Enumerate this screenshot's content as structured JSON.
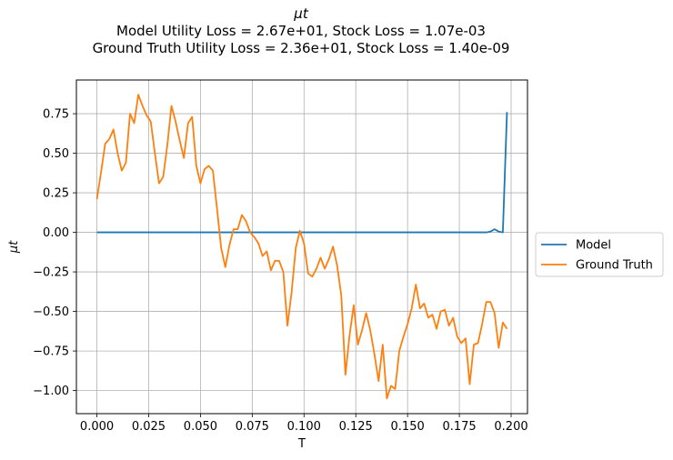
{
  "titles": {
    "line1": "μt",
    "line2": "Model Utility Loss = 2.67e+01, Stock Loss = 1.07e-03",
    "line3": "Ground Truth Utility Loss = 2.36e+01, Stock Loss = 1.40e-09"
  },
  "chart_data": {
    "type": "line",
    "xlabel": "T",
    "ylabel": "μt",
    "xlim": [
      -0.0099,
      0.2079
    ],
    "ylim": [
      -1.146,
      0.963
    ],
    "grid": true,
    "legend_placement": "right-outside",
    "x_ticks": [
      0.0,
      0.025,
      0.05,
      0.075,
      0.1,
      0.125,
      0.15,
      0.175,
      0.2
    ],
    "x_tick_labels": [
      "0.000",
      "0.025",
      "0.050",
      "0.075",
      "0.100",
      "0.125",
      "0.150",
      "0.175",
      "0.200"
    ],
    "y_ticks": [
      -1.0,
      -0.75,
      -0.5,
      -0.25,
      0.0,
      0.25,
      0.5,
      0.75
    ],
    "y_tick_labels": [
      "−1.00",
      "−0.75",
      "−0.50",
      "−0.25",
      "0.00",
      "0.25",
      "0.50",
      "0.75"
    ],
    "series": [
      {
        "name": "Model",
        "color": "#1f77b4",
        "x": [
          0.0,
          0.02,
          0.04,
          0.06,
          0.08,
          0.1,
          0.12,
          0.14,
          0.16,
          0.18,
          0.188,
          0.19,
          0.192,
          0.194,
          0.196,
          0.198
        ],
        "y": [
          0.0,
          0.0,
          0.0,
          0.0,
          0.0,
          0.0,
          0.0,
          0.0,
          0.0,
          0.0,
          0.0,
          0.005,
          0.02,
          0.005,
          0.0,
          0.76
        ]
      },
      {
        "name": "Ground Truth",
        "color": "#ff7f0e",
        "x": [
          0.0,
          0.002,
          0.004,
          0.006,
          0.008,
          0.01,
          0.012,
          0.014,
          0.016,
          0.018,
          0.02,
          0.022,
          0.024,
          0.026,
          0.028,
          0.03,
          0.032,
          0.034,
          0.036,
          0.038,
          0.04,
          0.042,
          0.044,
          0.046,
          0.048,
          0.05,
          0.052,
          0.054,
          0.056,
          0.058,
          0.06,
          0.062,
          0.064,
          0.066,
          0.068,
          0.07,
          0.072,
          0.074,
          0.076,
          0.078,
          0.08,
          0.082,
          0.084,
          0.086,
          0.088,
          0.09,
          0.092,
          0.094,
          0.096,
          0.098,
          0.1,
          0.102,
          0.104,
          0.106,
          0.108,
          0.11,
          0.112,
          0.114,
          0.116,
          0.118,
          0.12,
          0.122,
          0.124,
          0.126,
          0.128,
          0.13,
          0.132,
          0.134,
          0.136,
          0.138,
          0.14,
          0.142,
          0.144,
          0.146,
          0.148,
          0.15,
          0.152,
          0.154,
          0.156,
          0.158,
          0.16,
          0.162,
          0.164,
          0.166,
          0.168,
          0.17,
          0.172,
          0.174,
          0.176,
          0.178,
          0.18,
          0.182,
          0.184,
          0.186,
          0.188,
          0.19,
          0.192,
          0.194,
          0.196,
          0.198
        ],
        "y": [
          0.21,
          0.38,
          0.56,
          0.59,
          0.65,
          0.5,
          0.39,
          0.44,
          0.75,
          0.69,
          0.87,
          0.8,
          0.74,
          0.7,
          0.5,
          0.31,
          0.35,
          0.55,
          0.8,
          0.7,
          0.58,
          0.47,
          0.69,
          0.73,
          0.42,
          0.31,
          0.4,
          0.42,
          0.39,
          0.15,
          -0.1,
          -0.22,
          -0.08,
          0.02,
          0.02,
          0.11,
          0.07,
          0.0,
          -0.03,
          -0.07,
          -0.15,
          -0.12,
          -0.24,
          -0.18,
          -0.18,
          -0.25,
          -0.59,
          -0.38,
          -0.1,
          0.01,
          -0.07,
          -0.26,
          -0.28,
          -0.23,
          -0.16,
          -0.23,
          -0.17,
          -0.09,
          -0.21,
          -0.4,
          -0.9,
          -0.65,
          -0.46,
          -0.71,
          -0.62,
          -0.51,
          -0.62,
          -0.77,
          -0.94,
          -0.71,
          -1.05,
          -0.97,
          -0.99,
          -0.75,
          -0.66,
          -0.58,
          -0.48,
          -0.33,
          -0.48,
          -0.45,
          -0.54,
          -0.52,
          -0.61,
          -0.5,
          -0.49,
          -0.59,
          -0.54,
          -0.66,
          -0.7,
          -0.67,
          -0.96,
          -0.71,
          -0.7,
          -0.58,
          -0.44,
          -0.44,
          -0.51,
          -0.73,
          -0.57,
          -0.61
        ]
      }
    ]
  }
}
